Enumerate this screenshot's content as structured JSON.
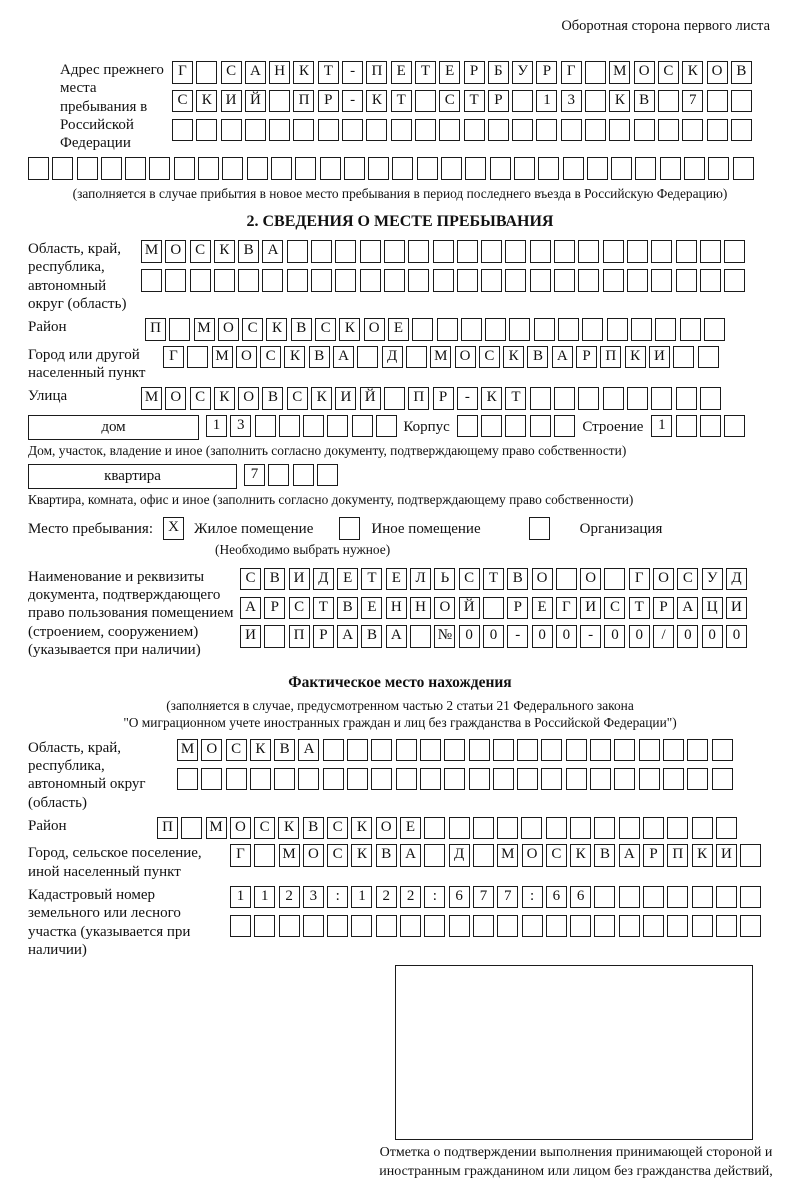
{
  "corner_note": "Оборотная сторона первого листа",
  "prev_address": {
    "label": "Адрес прежнего места пребывания в Российской Федерации",
    "rows": [
      {
        "text": "Г САНКТ-ПЕТЕРБУРГ МОСКОВ",
        "cells": 24
      },
      {
        "text": "СКИЙ ПР-КТ СТР 13 КВ 7",
        "cells": 24
      },
      {
        "text": "",
        "cells": 24
      },
      {
        "text": "",
        "cells": 30
      }
    ],
    "note": "(заполняется в случае прибытия в новое место пребывания в период последнего въезда в Российскую Федерацию)"
  },
  "section2": {
    "title": "2. СВЕДЕНИЯ О МЕСТЕ ПРЕБЫВАНИЯ",
    "region": {
      "label": "Область, край, республика, автономный округ (область)",
      "rows": [
        {
          "text": "МОСКВА",
          "cells": 25
        },
        {
          "text": "",
          "cells": 25
        }
      ]
    },
    "district": {
      "label": "Район",
      "row": {
        "text": "П МОСКВСКОЕ",
        "cells": 24
      }
    },
    "city": {
      "label": "Город или другой населенный пункт",
      "row": {
        "text": "Г МОСКВА Д МОСКВАРПКИ",
        "cells": 23
      }
    },
    "street": {
      "label": "Улица",
      "row": {
        "text": "МОСКОВСКИЙ ПР-КТ",
        "cells": 24
      }
    },
    "house": {
      "box_label": "дом",
      "row": {
        "text": "13",
        "cells": 8
      },
      "korpus_label": "Корпус",
      "korpus_row": {
        "text": "",
        "cells": 5
      },
      "stroenie_label": "Строение",
      "stroenie_row": {
        "text": "1",
        "cells": 4
      }
    },
    "house_note": "Дом, участок, владение и иное (заполнить согласно документу, подтверждающему право собственности)",
    "apartment": {
      "box_label": "квартира",
      "row": {
        "text": "7",
        "cells": 4
      }
    },
    "apartment_note": "Квартира, комната, офис и иное (заполнить согласно документу, подтверждающему право собственности)",
    "stay_place": {
      "label": "Место пребывания:",
      "options": [
        {
          "label": "Жилое помещение",
          "checked": "X"
        },
        {
          "label": "Иное помещение",
          "checked": ""
        },
        {
          "label": "Организация",
          "checked": ""
        }
      ],
      "note": "(Необходимо выбрать нужное)"
    },
    "document": {
      "label": "Наименование и реквизиты документа, подтверждающего право пользования помещением (строением, сооружением) (указывается при наличии)",
      "rows": [
        {
          "text": "СВИДЕТЕЛЬСТВО О ГОСУД",
          "cells": 21
        },
        {
          "text": "АРСТВЕННОЙ РЕГИСТРАЦИ",
          "cells": 21
        },
        {
          "text": "И ПРАВА №00-00-00/000",
          "cells": 21
        }
      ]
    }
  },
  "section3": {
    "title": "Фактическое место нахождения",
    "notes": [
      "(заполняется в случае, предусмотренном частью 2 статьи 21 Федерального закона",
      "\"О миграционном учете иностранных граждан и лиц без гражданства в Российской Федерации\")"
    ],
    "region": {
      "label": "Область, край, республика, автономный округ (область)",
      "rows": [
        {
          "text": "МОСКВА",
          "cells": 23
        },
        {
          "text": "",
          "cells": 23
        }
      ]
    },
    "district": {
      "label": "Район",
      "row": {
        "text": "П МОСКВСКОЕ",
        "cells": 24
      }
    },
    "city": {
      "label": "Город, сельское поселение, иной населенный пункт",
      "row": {
        "text": "Г МОСКВА Д МОСКВАРПКИ",
        "cells": 22
      }
    },
    "cadastre": {
      "label": "Кадастровый номер земельного или лесного участка (указывается при наличии)",
      "rows": [
        {
          "text": "1123:122:677:66",
          "cells": 22
        },
        {
          "text": "",
          "cells": 22
        }
      ]
    },
    "stamp_caption": "Отметка о подтверждении выполнения принимающей стороной и иностранным гражданином или лицом без гражданства действий, необходимых для его постановки на учет по месту пребывания"
  }
}
